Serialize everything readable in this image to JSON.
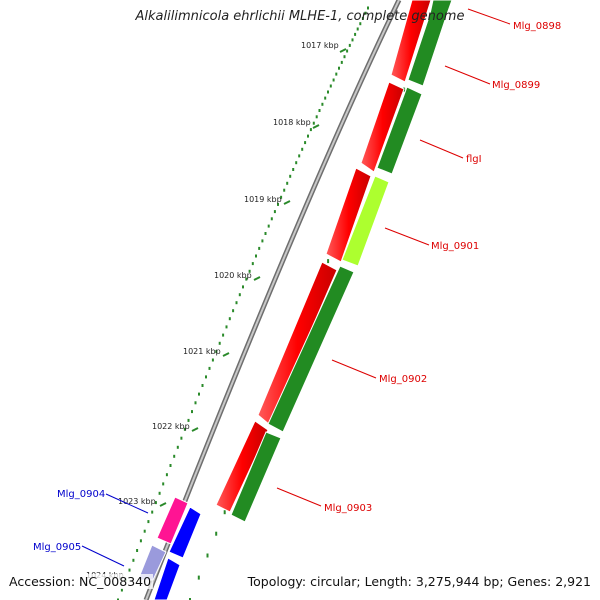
{
  "title": "Alkalilimnicola ehrlichii MLHE-1, complete genome",
  "footer": {
    "accession": "Accession: NC_008340",
    "summary": "Topology: circular; Length: 3,275,944 bp; Genes: 2,921"
  },
  "colors": {
    "backbone": "#8c8c8c",
    "tick": "#2a8a2a",
    "reverse_strand_gene": "#ff0000",
    "forward_strand_gene": "#228b22",
    "highlight_gene": "#adff2f",
    "magenta_gene": "#ff1493",
    "blue_gene": "#0000ff",
    "label_red": "#dd0000",
    "label_blue": "#0000cc"
  },
  "tick_labels": [
    "1017 kbp",
    "1018 kbp",
    "1019 kbp",
    "1020 kbp",
    "1021 kbp",
    "1022 kbp",
    "1023 kbp"
  ],
  "partial_tick_label": "1024 kbp",
  "genes": [
    {
      "name": "Mlg_0898",
      "color": "label_red"
    },
    {
      "name": "Mlg_0899",
      "color": "label_red"
    },
    {
      "name": "flgI",
      "color": "label_red"
    },
    {
      "name": "Mlg_0901",
      "color": "label_red"
    },
    {
      "name": "Mlg_0902",
      "color": "label_red"
    },
    {
      "name": "Mlg_0903",
      "color": "label_red"
    },
    {
      "name": "Mlg_0904",
      "color": "label_blue"
    },
    {
      "name": "Mlg_0905",
      "color": "label_blue"
    }
  ]
}
